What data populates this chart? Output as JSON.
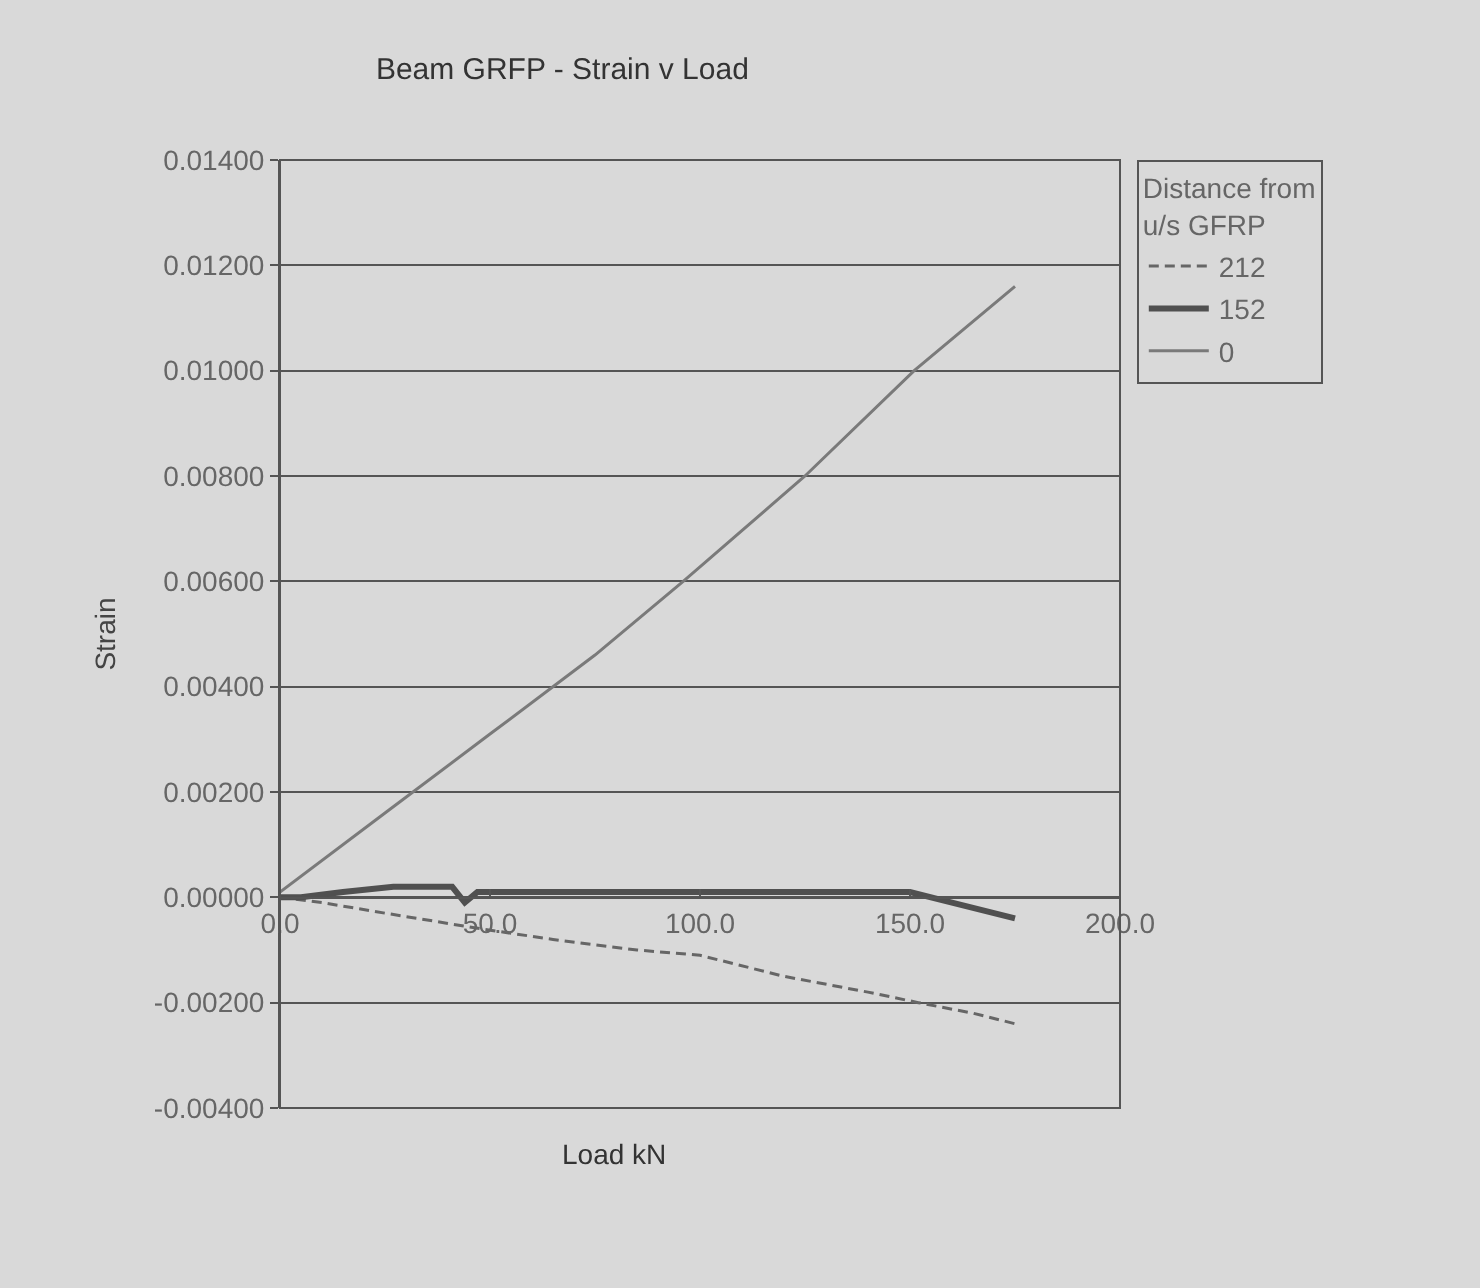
{
  "chart_data": {
    "type": "line",
    "title": "Beam GRFP - Strain v Load",
    "xlabel": "Load kN",
    "ylabel": "Strain",
    "legend_title": "Distance from u/s GFRP",
    "series": [
      {
        "name": "212",
        "color": "#666666",
        "line_style": "dashed",
        "x": [
          0,
          10,
          25,
          48,
          65,
          85,
          100,
          120,
          140,
          152,
          165,
          175
        ],
        "values": [
          0.0,
          -0.0001,
          -0.0003,
          -0.0006,
          -0.0008,
          -0.001,
          -0.0011,
          -0.0015,
          -0.0018,
          -0.002,
          -0.0022,
          -0.0024
        ]
      },
      {
        "name": "152",
        "color": "#505050",
        "line_style": "solid",
        "x": [
          0,
          5,
          15,
          27,
          41,
          44,
          47,
          70,
          100,
          130,
          150,
          160,
          170,
          175
        ],
        "values": [
          0.0,
          0.0,
          0.0001,
          0.0002,
          0.0002,
          -0.0001,
          0.0001,
          0.0001,
          0.0001,
          0.0001,
          0.0001,
          -0.0001,
          -0.0003,
          -0.0004
        ]
      },
      {
        "name": "0",
        "color": "#7a7a7a",
        "line_style": "solid",
        "x": [
          0,
          25,
          50,
          75,
          96,
          125,
          151,
          175
        ],
        "values": [
          0.0001,
          0.0016,
          0.0031,
          0.0046,
          0.006,
          0.008,
          0.01,
          0.0116
        ]
      }
    ],
    "xlim": [
      0,
      200
    ],
    "xticks": [
      {
        "value": 0,
        "label": "0.0"
      },
      {
        "value": 50,
        "label": "50.0"
      },
      {
        "value": 100,
        "label": "100.0"
      },
      {
        "value": 150,
        "label": "150.0"
      },
      {
        "value": 200,
        "label": "200.0"
      }
    ],
    "ylim": [
      -0.004,
      0.014
    ],
    "yticks": [
      {
        "value": -0.004,
        "label": "-0.00400"
      },
      {
        "value": -0.002,
        "label": "-0.00200"
      },
      {
        "value": 0,
        "label": "0.00000"
      },
      {
        "value": 0.002,
        "label": "0.00200"
      },
      {
        "value": 0.004,
        "label": "0.00400"
      },
      {
        "value": 0.006,
        "label": "0.00600"
      },
      {
        "value": 0.008,
        "label": "0.00800"
      },
      {
        "value": 0.01,
        "label": "0.01000"
      },
      {
        "value": 0.012,
        "label": "0.01200"
      },
      {
        "value": 0.014,
        "label": "0.01400"
      }
    ],
    "grid": "y",
    "legend": "top right",
    "marker": "none"
  }
}
